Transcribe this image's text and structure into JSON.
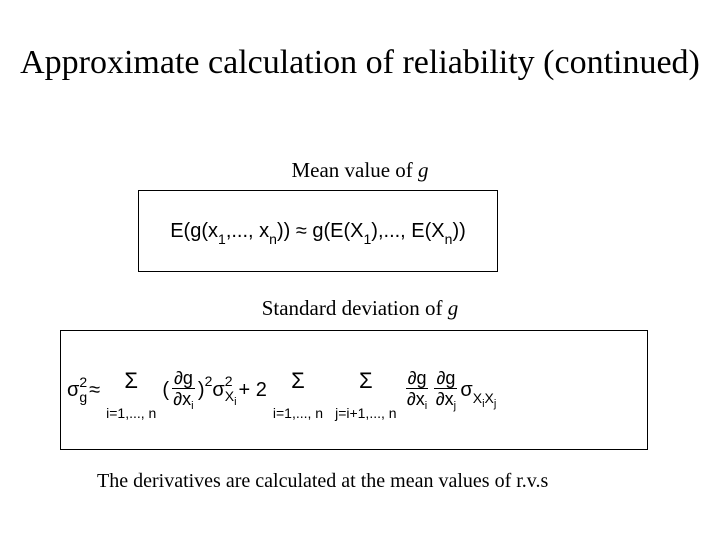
{
  "title": "Approximate calculation of reliability (continued)",
  "sections": [
    {
      "heading": {
        "label": "Mean value of",
        "var": "g"
      },
      "formula": [
        {
          "text": "E(g(x"
        },
        {
          "sub": "1"
        },
        {
          "text": ",..., x"
        },
        {
          "sub": "n"
        },
        {
          "text": ")) ≈ g(E(X"
        },
        {
          "sub": "1"
        },
        {
          "text": "),..., E(X"
        },
        {
          "sub": "n"
        },
        {
          "text": "))"
        }
      ]
    },
    {
      "heading": {
        "label": "Standard deviation of",
        "var": "g"
      },
      "formula": [
        {
          "text": "σ"
        },
        {
          "sup": "2",
          "sub": "g"
        },
        {
          "text": "≈"
        },
        {
          "sum": "Σ",
          "limit": "i=1,..., n"
        },
        {
          "text": "("
        },
        {
          "num": "∂g",
          "den": "∂x",
          "den_sub": "i"
        },
        {
          "text": ")"
        },
        {
          "sup": "2"
        },
        {
          "text": "σ"
        },
        {
          "sup": "2",
          "sub": "X",
          "subsub": "i"
        },
        {
          "text": "+ 2"
        },
        {
          "sum": "Σ",
          "limit": "i=1,..., n"
        },
        {
          "sum": "Σ",
          "limit": "j=i+1,..., n"
        },
        {
          "num": "∂g",
          "den": "∂x",
          "den_sub": "i"
        },
        {
          "num": "∂g",
          "den": "∂x",
          "den_sub": "j"
        },
        {
          "text": "σ"
        },
        {
          "sub": "X",
          "subsub": "i"
        },
        {
          "sub": "X",
          "subsub": "j"
        }
      ]
    }
  ],
  "note": "The derivatives are calculated at the mean values of r.v.s"
}
